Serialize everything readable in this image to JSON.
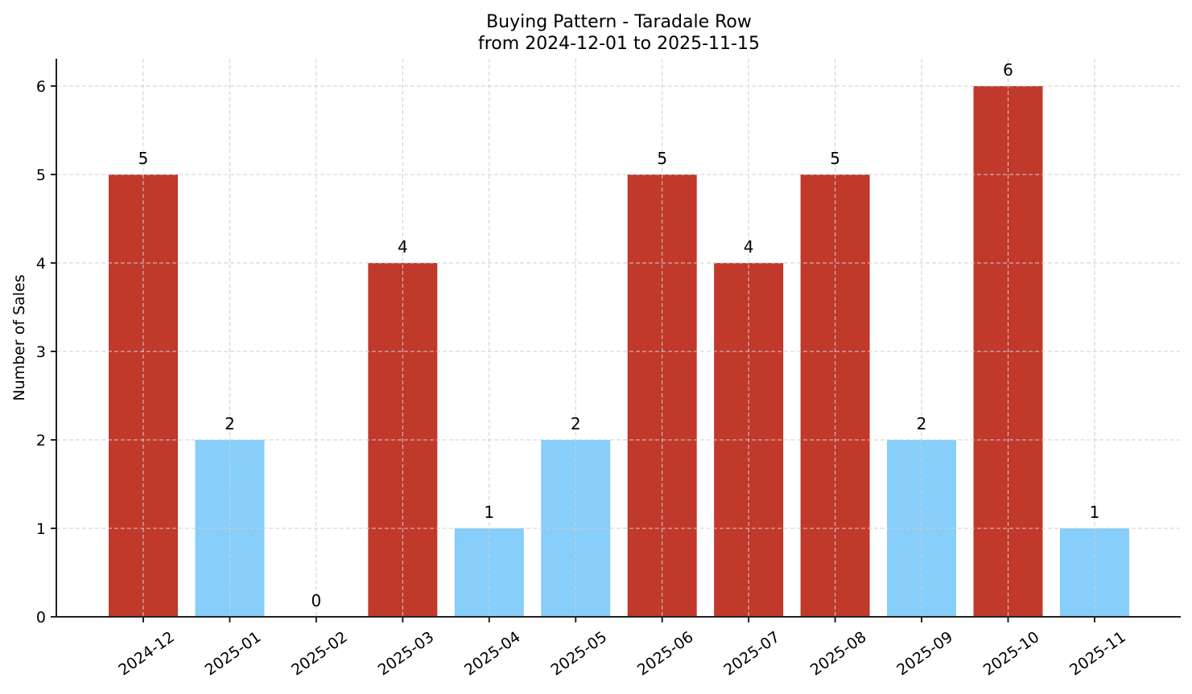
{
  "chart_data": {
    "type": "bar",
    "title": "Buying Pattern - Taradale Row",
    "subtitle": "from 2024-12-01 to 2025-11-15",
    "xlabel": "",
    "ylabel": "Number of Sales",
    "categories": [
      "2024-12",
      "2025-01",
      "2025-02",
      "2025-03",
      "2025-04",
      "2025-05",
      "2025-06",
      "2025-07",
      "2025-08",
      "2025-09",
      "2025-10",
      "2025-11"
    ],
    "values": [
      5,
      2,
      0,
      4,
      1,
      2,
      5,
      4,
      5,
      2,
      6,
      1
    ],
    "bar_colors": [
      "#c0392b",
      "#87cefa",
      "#87cefa",
      "#c0392b",
      "#87cefa",
      "#87cefa",
      "#c0392b",
      "#c0392b",
      "#c0392b",
      "#87cefa",
      "#c0392b",
      "#87cefa"
    ],
    "ylim": [
      0,
      6.3
    ],
    "yticks": [
      0,
      1,
      2,
      3,
      4,
      5,
      6
    ],
    "grid": true,
    "legend": null,
    "data_labels": true,
    "colors": {
      "high": "#c0392b",
      "low": "#87cefa"
    }
  }
}
